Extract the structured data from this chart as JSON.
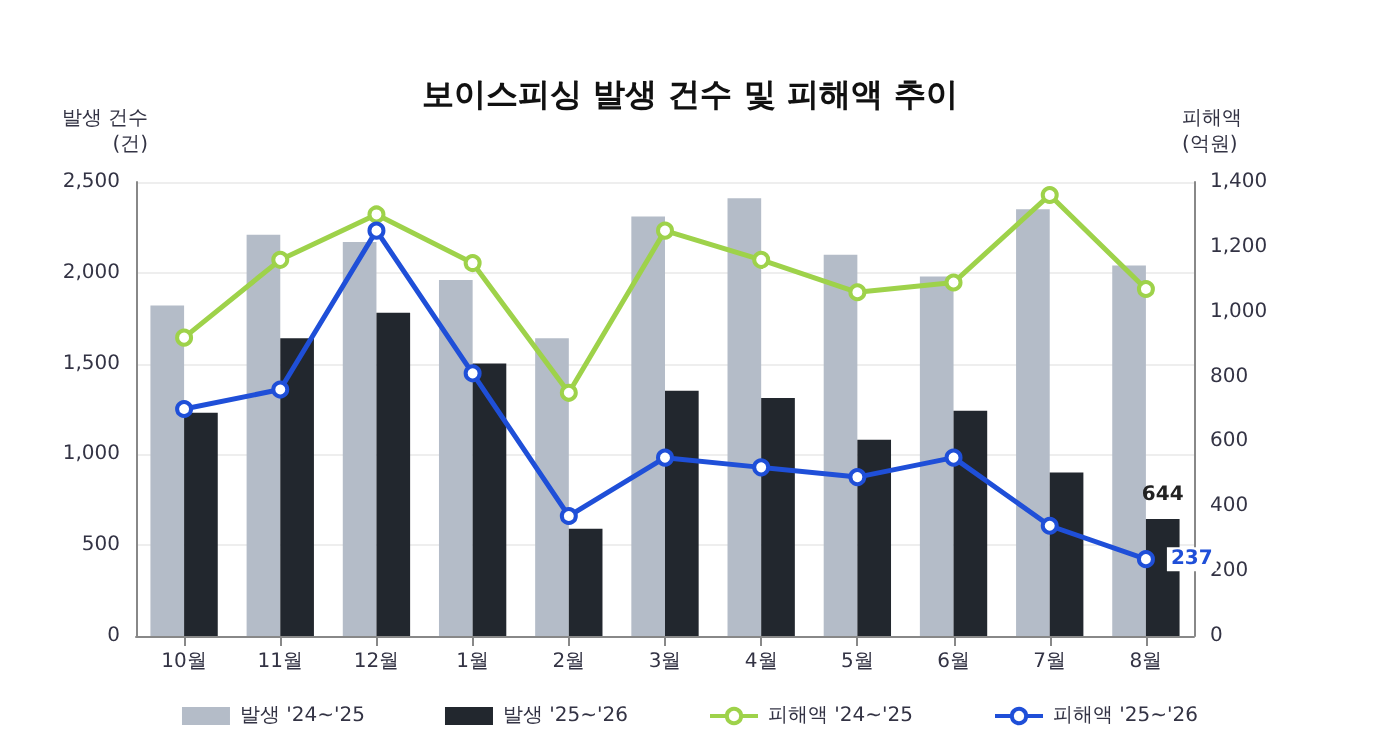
{
  "chart_data": {
    "type": "bar",
    "title": "보이스피싱 발생 건수 및 피해액 추이",
    "ylabel": "발생 건수\n(건)",
    "y2label": "피해액\n(억원)",
    "categories": [
      "10월",
      "11월",
      "12월",
      "1월",
      "2월",
      "3월",
      "4월",
      "5월",
      "6월",
      "7월",
      "8월"
    ],
    "series": [
      {
        "name": "발생 '24~'25",
        "color": "#b4bcc8",
        "values": [
          1820,
          2210,
          2170,
          1960,
          1640,
          2310,
          2410,
          2100,
          1980,
          2350,
          2040
        ]
      },
      {
        "name": "발생 '25~'26",
        "color": "#22272e",
        "values": [
          1230,
          1640,
          1780,
          1500,
          590,
          1350,
          1310,
          1080,
          1240,
          900,
          644
        ],
        "value_labels": [
          null,
          null,
          null,
          null,
          null,
          null,
          null,
          null,
          null,
          null,
          "644"
        ]
      },
      {
        "name": "피해액 '24~'25",
        "type": "line",
        "axis": "y2",
        "color": "#9ed24a",
        "values": [
          920,
          1160,
          1300,
          1150,
          750,
          1250,
          1160,
          1060,
          1090,
          1360,
          1070
        ]
      },
      {
        "name": "피해액 '25~'26",
        "type": "line",
        "axis": "y2",
        "color": "#1f4fd8",
        "values": [
          700,
          760,
          1250,
          810,
          370,
          550,
          520,
          490,
          550,
          340,
          237
        ],
        "value_labels": [
          null,
          null,
          null,
          null,
          null,
          null,
          null,
          null,
          null,
          null,
          "237"
        ]
      }
    ],
    "ylim": [
      0,
      2500
    ],
    "yticks": [
      0,
      500,
      {
        "value": 1000,
        "label": "1,000"
      },
      {
        "value": 1500,
        "label": "1,500"
      },
      {
        "value": 2000,
        "label": "2,000"
      },
      {
        "value": 2500,
        "label": "2,500"
      }
    ],
    "y2lim": [
      0,
      1400
    ],
    "y2ticks": [
      0,
      200,
      400,
      600,
      800,
      {
        "value": 1000,
        "label": "1,000"
      },
      {
        "value": 1200,
        "label": "1,200"
      },
      {
        "value": 1400,
        "label": "1,400"
      }
    ],
    "grid": "y",
    "legend": "bottom",
    "marker": "circle"
  }
}
